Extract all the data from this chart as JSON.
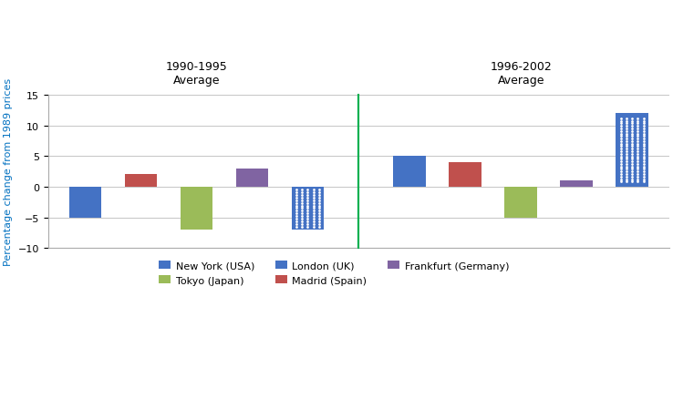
{
  "ylabel": "Percentage change from 1989 prices",
  "ylim": [
    -10,
    15
  ],
  "yticks": [
    -10,
    -5,
    0,
    5,
    10,
    15
  ],
  "period1_label_line1": "1990-1995",
  "period1_label_line2": "Average",
  "period2_label_line1": "1996-2002",
  "period2_label_line2": "Average",
  "cities": [
    "New York (USA)",
    "Madrid (Spain)",
    "Tokyo (Japan)",
    "Frankfurt (Germany)",
    "London (UK)"
  ],
  "values_period1": [
    -5,
    2,
    -7,
    3,
    -7
  ],
  "values_period2": [
    5,
    4,
    -5,
    1,
    12
  ],
  "colors": {
    "New York (USA)": "#4472C4",
    "Madrid (Spain)": "#C0504D",
    "Tokyo (Japan)": "#9BBB59",
    "Frankfurt (Germany)": "#8064A2",
    "London (UK)": "#4472C4"
  },
  "london_dotted": true,
  "divider_color": "#00B050",
  "background_color": "#FFFFFF",
  "ylabel_color": "#0070C0"
}
